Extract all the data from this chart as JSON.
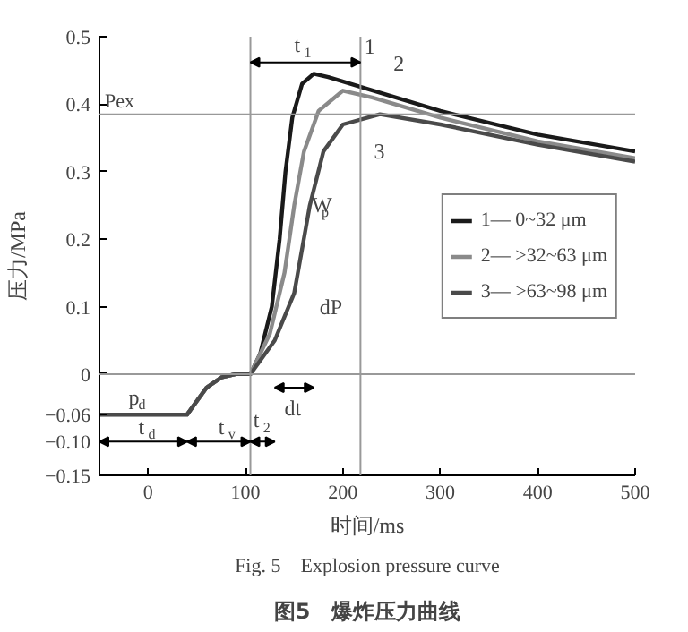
{
  "chart_data": {
    "type": "line",
    "title": "图5　爆炸压力曲线",
    "subtitle": "Fig. 5　Explosion pressure curve",
    "xlabel": "时间/ms",
    "ylabel": "压力/MPa",
    "series": [
      {
        "name": "1— 0~32 μm",
        "color": "#1a1a1a",
        "x": [
          -50,
          40,
          50,
          60,
          75,
          90,
          105,
          115,
          127,
          135,
          141,
          148,
          158,
          170,
          185,
          220,
          300,
          400,
          500
        ],
        "values": [
          -0.06,
          -0.06,
          -0.04,
          -0.02,
          -0.005,
          0,
          0,
          0.03,
          0.1,
          0.2,
          0.3,
          0.38,
          0.43,
          0.445,
          0.44,
          0.425,
          0.39,
          0.355,
          0.33
        ]
      },
      {
        "name": "2— >32~63 μm",
        "color": "#8a8a8a",
        "x": [
          -50,
          40,
          50,
          60,
          75,
          90,
          105,
          125,
          140,
          150,
          160,
          175,
          200,
          230,
          300,
          400,
          500
        ],
        "values": [
          -0.06,
          -0.06,
          -0.04,
          -0.02,
          -0.005,
          0,
          0,
          0.06,
          0.15,
          0.25,
          0.33,
          0.39,
          0.42,
          0.41,
          0.38,
          0.345,
          0.32
        ]
      },
      {
        "name": "3— >63~98 μm",
        "color": "#4a4a4a",
        "x": [
          -50,
          40,
          50,
          60,
          75,
          90,
          105,
          130,
          150,
          166,
          180,
          200,
          238,
          300,
          400,
          500
        ],
        "values": [
          -0.06,
          -0.06,
          -0.04,
          -0.02,
          -0.005,
          0,
          0,
          0.05,
          0.12,
          0.25,
          0.33,
          0.37,
          0.385,
          0.37,
          0.34,
          0.315
        ]
      }
    ],
    "xlim": [
      -50,
      500
    ],
    "xticks": [
      0,
      100,
      200,
      300,
      400,
      500
    ],
    "ylim": [
      -0.15,
      0.5
    ],
    "yticks": [
      {
        "value": -0.15,
        "label": "−0.15"
      },
      {
        "value": -0.1,
        "label": "−0.10"
      },
      {
        "value": -0.06,
        "label": "−0.06"
      },
      0,
      0.1,
      0.2,
      0.3,
      0.4,
      0.5
    ],
    "ref_lines": [
      {
        "axis": "y",
        "value": 0.385,
        "label": "Pex",
        "color": "#999999"
      },
      {
        "axis": "y",
        "value": 0,
        "label": null,
        "color": "#999999"
      },
      {
        "axis": "x",
        "value": 105,
        "label": null,
        "color": "#999999"
      },
      {
        "axis": "x",
        "value": 218,
        "label": null,
        "color": "#999999"
      }
    ],
    "annotations": [
      "t$_{1}$",
      "1",
      "2",
      "3",
      "W$_{p}$",
      "dP",
      "dt",
      "p$_{d}$",
      "t$_{d}$",
      "t$_{v}$",
      "t$_{2}$"
    ],
    "legend": "right",
    "grid": false,
    "marker": "none",
    "line_style": "solid"
  }
}
